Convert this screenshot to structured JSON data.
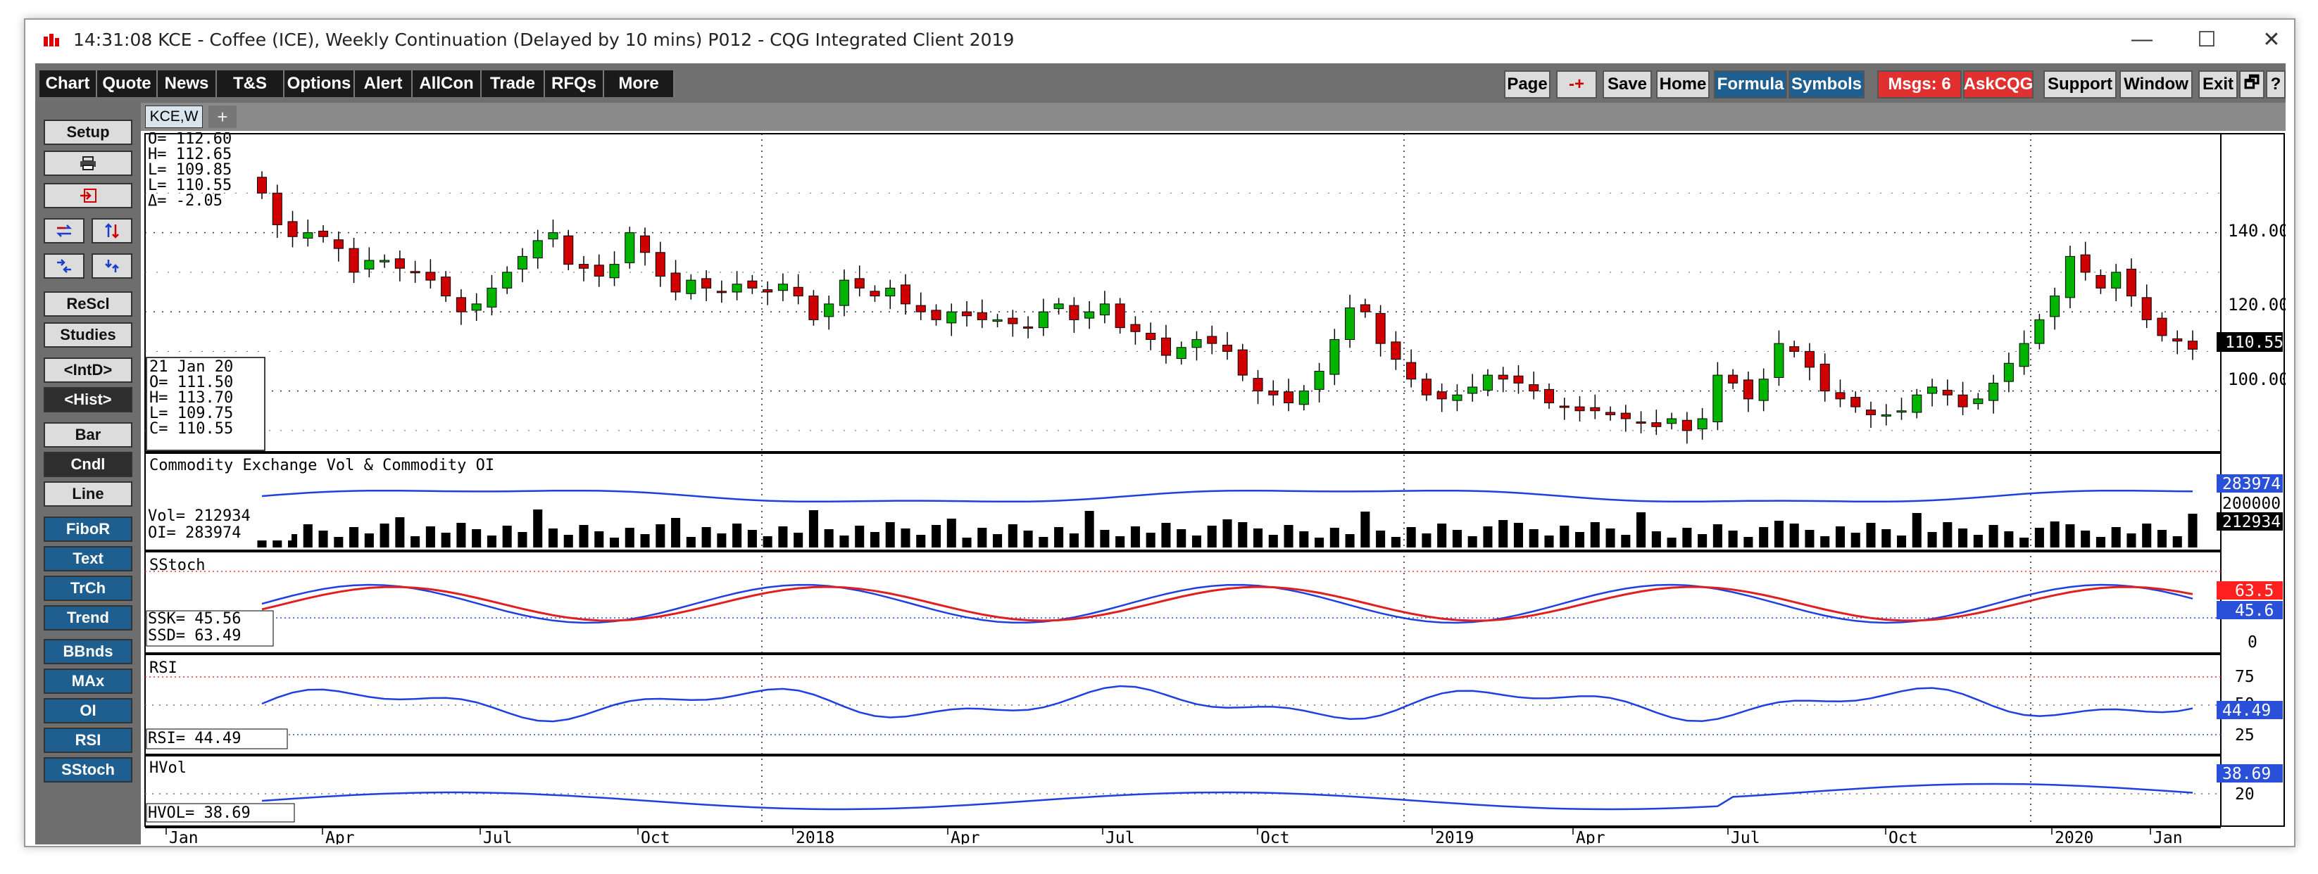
{
  "window": {
    "time": "14:31:08",
    "title": "KCE - Coffee (ICE), Weekly Continuation (Delayed by 10 mins)   P012 - CQG Integrated Client 2019",
    "controls": {
      "minimize": "—",
      "maximize": "☐",
      "close": "✕"
    }
  },
  "toolbar": {
    "left": [
      "Chart",
      "Quote",
      "News",
      "T&S",
      "Options",
      "Alert",
      "AllCon",
      "Trade",
      "RFQs",
      "More"
    ],
    "page": "Page",
    "arrows": "-+",
    "save": "Save",
    "home": "Home",
    "formula": "Formula",
    "symbols": "Symbols",
    "msgs": "Msgs: 6",
    "askcqg": "AskCQG",
    "support": "Support",
    "window": "Window",
    "exit": "Exit",
    "restore": "🗗",
    "help": "?"
  },
  "sidebar": {
    "setup": "Setup",
    "print_icon": "printer-icon",
    "export_icon": "export-icon",
    "rescl": "ReScl",
    "studies": "Studies",
    "intd": "<IntD>",
    "hist": "<Hist>",
    "bar": "Bar",
    "cndl": "Cndl",
    "line": "Line",
    "fibor": "FiboR",
    "text": "Text",
    "trch": "TrCh",
    "trend": "Trend",
    "bbnds": "BBnds",
    "max": "MAx",
    "oi": "OI",
    "rsi": "RSI",
    "sstoch": "SStoch"
  },
  "tabs": {
    "active": "KCE,W",
    "add": "+"
  },
  "colors": {
    "up": "#00b400",
    "down": "#d00000",
    "line_blue": "#1f3fe0",
    "line_red": "#e02020",
    "scale_bg": "#000000",
    "rsi_bg": "#2a4fd8",
    "stoch_red": "#ff2020"
  },
  "ohlc_box": {
    "o": "O= 112.60",
    "h": "H= 112.65",
    "l": "L= 109.85",
    "last": "L= 110.55",
    "delta": "Δ=  -2.05"
  },
  "cursor_box": {
    "date": "21 Jan 20",
    "o": "O=   111.50",
    "h": "H=   113.70",
    "l": "L=   109.75",
    "c": "C=   110.55"
  },
  "panels": {
    "price": {
      "ticks": [
        "140.00",
        "120.00",
        "100.00"
      ],
      "last": "110.55"
    },
    "volume": {
      "title": "Commodity Exchange Vol & Commodity OI",
      "vol": "Vol=     212934",
      "oi": "OI=      283974",
      "tick": "200000",
      "oi_last": "283974",
      "vol_last": "212934"
    },
    "sstoch": {
      "title": "SStoch",
      "ssk": "SSK=      45.56",
      "ssd": "SSD=      63.49",
      "ssd_last": "63.5",
      "ssk_last": "45.6",
      "zero": "0"
    },
    "rsi": {
      "title": "RSI",
      "value": "RSI=   44.49",
      "t75": "75",
      "t50": "50",
      "t25": "25",
      "last": "44.49"
    },
    "hvol": {
      "title": "HVol",
      "value": "HVOL=    38.69",
      "last": "38.69",
      "t20": "20"
    }
  },
  "x_axis": {
    "labels": [
      "Jan",
      "Apr",
      "Jul",
      "Oct",
      "2018",
      "Apr",
      "Jul",
      "Oct",
      "2019",
      "Apr",
      "Jul",
      "Oct",
      "2020",
      "Jan"
    ]
  },
  "chart_data": {
    "type": "candlestick",
    "title": "KCE - Coffee (ICE), Weekly Continuation",
    "period": "Weekly",
    "x_range": [
      "Jan 2017",
      "Jan 2020"
    ],
    "price_ylim": [
      85,
      165
    ],
    "price_ticks": [
      140,
      120,
      100
    ],
    "closes": [
      150,
      142,
      139,
      140,
      139,
      136,
      130,
      133,
      133,
      131,
      130,
      128,
      124,
      120,
      122,
      126,
      130,
      134,
      138,
      140,
      132,
      131,
      129,
      132,
      140,
      135,
      129,
      125,
      128,
      126,
      125,
      127,
      126,
      125,
      127,
      124,
      118,
      122,
      128,
      126,
      124,
      126,
      122,
      120,
      118,
      120,
      119,
      118,
      118,
      117,
      116,
      120,
      122,
      118,
      120,
      122,
      116,
      115,
      113,
      109,
      111,
      113,
      112,
      110,
      104,
      100,
      99,
      97,
      100,
      105,
      113,
      121,
      120,
      112,
      108,
      103,
      99,
      98,
      99,
      101,
      104,
      103,
      102,
      100,
      97,
      96,
      95,
      95,
      94,
      93,
      92,
      91,
      93,
      90,
      93,
      104,
      102,
      98,
      103,
      112,
      110,
      106,
      100,
      98,
      96,
      94,
      94,
      95,
      99,
      101,
      99,
      96,
      98,
      102,
      107,
      112,
      118,
      124,
      134,
      130,
      126,
      130,
      124,
      118,
      114,
      112.6,
      110.55
    ],
    "volume_series": {
      "name": "Vol",
      "last": 212934
    },
    "oi_series": {
      "name": "OI",
      "last": 283974
    },
    "sstoch": {
      "ssk_last": 45.56,
      "ssd_last": 63.49
    },
    "rsi": {
      "last": 44.49,
      "levels": [
        75,
        50,
        25
      ]
    },
    "hvol": {
      "last": 38.69
    }
  }
}
